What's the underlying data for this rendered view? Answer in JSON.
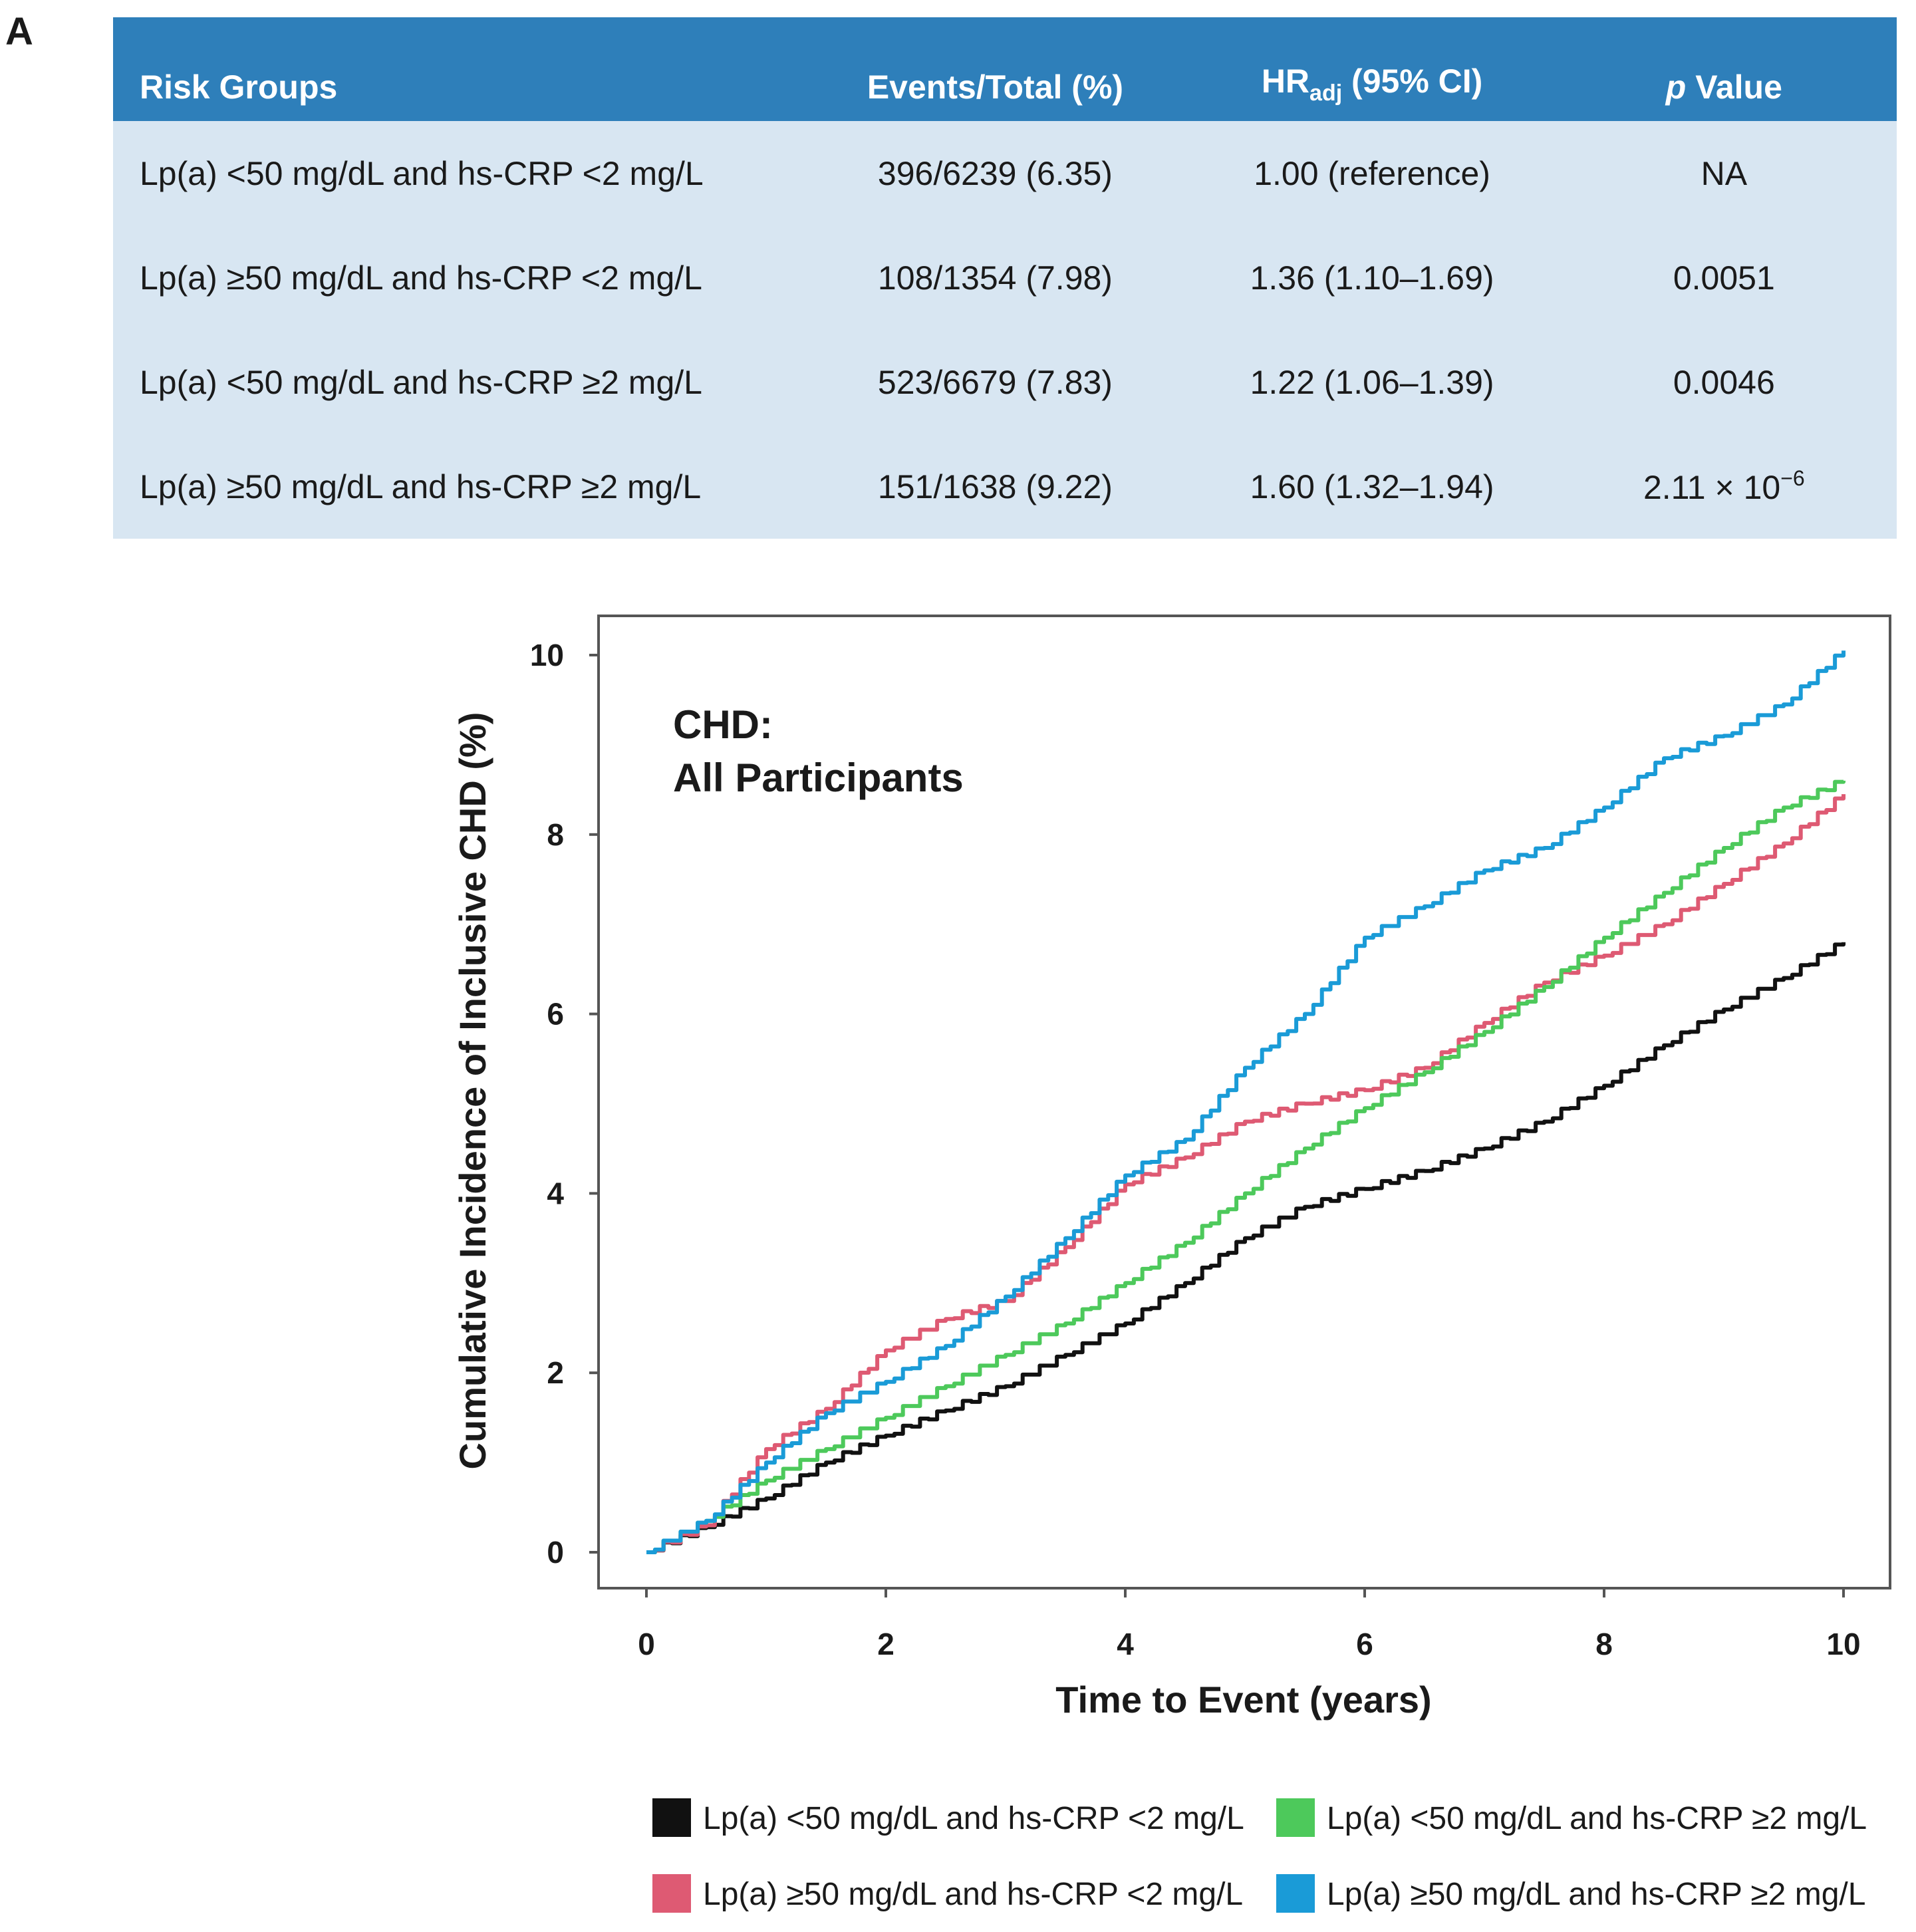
{
  "panel_label": "A",
  "table": {
    "headers": {
      "risk_groups": "Risk Groups",
      "events_total": "Events/Total (%)",
      "hr_main": "HR",
      "hr_sub": "adj",
      "hr_rest": " (95% CI)",
      "p_italic": "p",
      "p_rest": " Value"
    },
    "rows": [
      {
        "group": "Lp(a) <50 mg/dL and hs-CRP <2 mg/L",
        "events": "396/6239 (6.35)",
        "hr": "1.00 (reference)",
        "p": "NA"
      },
      {
        "group": "Lp(a) ≥50 mg/dL and hs-CRP <2 mg/L",
        "events": "108/1354 (7.98)",
        "hr": "1.36 (1.10–1.69)",
        "p": "0.0051"
      },
      {
        "group": "Lp(a) <50 mg/dL and hs-CRP ≥2 mg/L",
        "events": "523/6679 (7.83)",
        "hr": "1.22 (1.06–1.39)",
        "p": "0.0046"
      },
      {
        "group": "Lp(a) ≥50 mg/dL and hs-CRP ≥2 mg/L",
        "events": "151/1638 (9.22)",
        "hr": "1.60 (1.32–1.94)",
        "p": "2.11 × 10",
        "p_exp": "−6"
      }
    ]
  },
  "chart_data": {
    "type": "line",
    "title_line1": "CHD:",
    "title_line2": "All Participants",
    "xlabel": "Time to Event (years)",
    "ylabel": "Cumulative Incidence of Inclusive CHD (%)",
    "xlim": [
      0,
      10
    ],
    "ylim": [
      0,
      10
    ],
    "xticks": [
      0,
      2,
      4,
      6,
      8,
      10
    ],
    "yticks": [
      0,
      2,
      4,
      6,
      8,
      10
    ],
    "legend_position": "bottom",
    "series": [
      {
        "name": "Lp(a) <50 mg/dL and hs-CRP <2 mg/L",
        "color": "#111111",
        "x": [
          0,
          0.5,
          1,
          1.5,
          2,
          2.5,
          3,
          3.5,
          4,
          4.5,
          5,
          5.5,
          6,
          6.5,
          7,
          7.5,
          8,
          8.5,
          9,
          9.5,
          10
        ],
        "y": [
          0,
          0.28,
          0.6,
          1.0,
          1.3,
          1.58,
          1.85,
          2.2,
          2.55,
          3.0,
          3.5,
          3.85,
          4.05,
          4.25,
          4.5,
          4.8,
          5.2,
          5.65,
          6.05,
          6.4,
          6.8
        ]
      },
      {
        "name": "Lp(a) ≥50 mg/dL and hs-CRP <2 mg/L",
        "color": "#de5a73",
        "x": [
          0,
          0.5,
          1,
          1.5,
          2,
          2.5,
          3,
          3.5,
          4,
          4.5,
          5,
          5.5,
          6,
          6.5,
          7,
          7.5,
          8,
          8.5,
          9,
          9.5,
          10
        ],
        "y": [
          0,
          0.3,
          1.15,
          1.6,
          2.25,
          2.6,
          2.8,
          3.4,
          4.1,
          4.4,
          4.8,
          5.0,
          5.15,
          5.4,
          5.9,
          6.35,
          6.65,
          7.0,
          7.45,
          7.9,
          8.45
        ]
      },
      {
        "name": "Lp(a) <50 mg/dL and hs-CRP ≥2 mg/L",
        "color": "#4dc95b",
        "x": [
          0,
          0.5,
          1,
          1.5,
          2,
          2.5,
          3,
          3.5,
          4,
          4.5,
          5,
          5.5,
          6,
          6.5,
          7,
          7.5,
          8,
          8.5,
          9,
          9.5,
          10
        ],
        "y": [
          0,
          0.35,
          0.8,
          1.15,
          1.5,
          1.85,
          2.2,
          2.55,
          3.0,
          3.45,
          4.0,
          4.5,
          4.95,
          5.35,
          5.8,
          6.3,
          6.85,
          7.35,
          7.85,
          8.3,
          8.6
        ]
      },
      {
        "name": "Lp(a) ≥50 mg/dL and hs-CRP ≥2 mg/L",
        "color": "#1a9bd7",
        "x": [
          0,
          0.5,
          1,
          1.5,
          2,
          2.5,
          3,
          3.5,
          4,
          4.5,
          5,
          5.5,
          6,
          6.5,
          7,
          7.5,
          8,
          8.5,
          9,
          9.5,
          10
        ],
        "y": [
          0,
          0.35,
          1.0,
          1.55,
          1.9,
          2.3,
          2.85,
          3.5,
          4.2,
          4.6,
          5.4,
          6.0,
          6.85,
          7.2,
          7.6,
          7.85,
          8.3,
          8.85,
          9.1,
          9.45,
          10.05
        ]
      }
    ]
  }
}
